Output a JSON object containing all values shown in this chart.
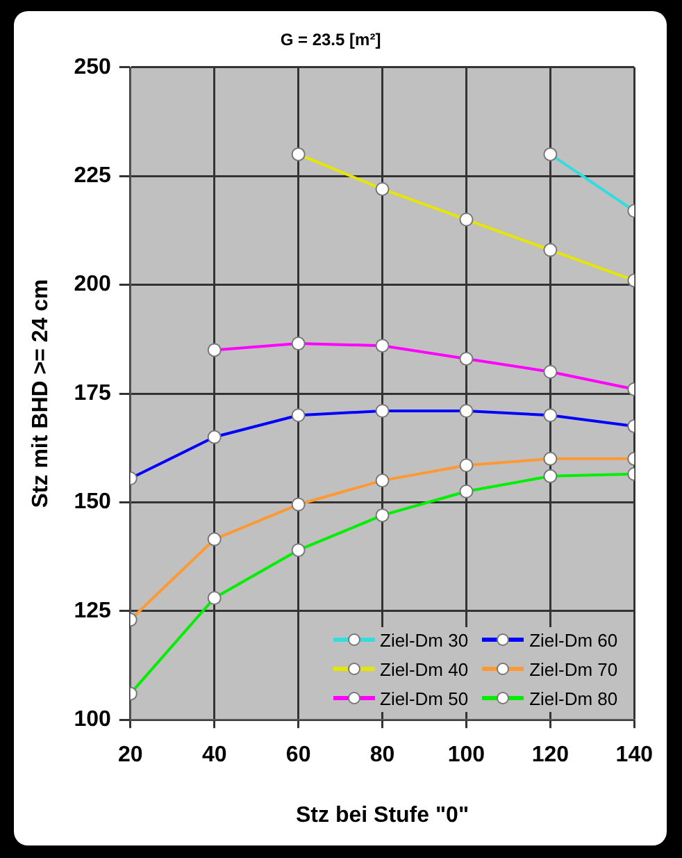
{
  "chart_data": {
    "type": "line",
    "title": "G = 23.5 [m²]",
    "xlabel": "Stz bei Stufe \"0\"",
    "ylabel": "Stz mit BHD >= 24 cm",
    "x": [
      20,
      40,
      60,
      80,
      100,
      120,
      140
    ],
    "series": [
      {
        "name": "Ziel-Dm 30",
        "color": "#33dddd",
        "values": [
          null,
          null,
          null,
          null,
          null,
          230,
          217
        ]
      },
      {
        "name": "Ziel-Dm 40",
        "color": "#e6e600",
        "values": [
          null,
          null,
          230,
          222,
          215,
          208,
          201
        ]
      },
      {
        "name": "Ziel-Dm 50",
        "color": "#ff00ff",
        "values": [
          null,
          185,
          186.5,
          186,
          183,
          180,
          176
        ]
      },
      {
        "name": "Ziel-Dm 60",
        "color": "#0000ff",
        "values": [
          155.5,
          165,
          170,
          171,
          171,
          170,
          167.5
        ]
      },
      {
        "name": "Ziel-Dm 70",
        "color": "#ff9933",
        "values": [
          123,
          141.5,
          149.5,
          155,
          158.5,
          160,
          160
        ]
      },
      {
        "name": "Ziel-Dm 80",
        "color": "#00ee00",
        "values": [
          106,
          128,
          139,
          147,
          152.5,
          156,
          156.5
        ]
      }
    ],
    "xlim": [
      20,
      140
    ],
    "xticks": [
      20,
      40,
      60,
      80,
      100,
      120,
      140
    ],
    "ylim": [
      100,
      250
    ],
    "yticks": [
      100,
      125,
      150,
      175,
      200,
      225,
      250
    ],
    "grid": true,
    "legend": "bottom right",
    "marker": "circle",
    "line_style": "solid"
  }
}
